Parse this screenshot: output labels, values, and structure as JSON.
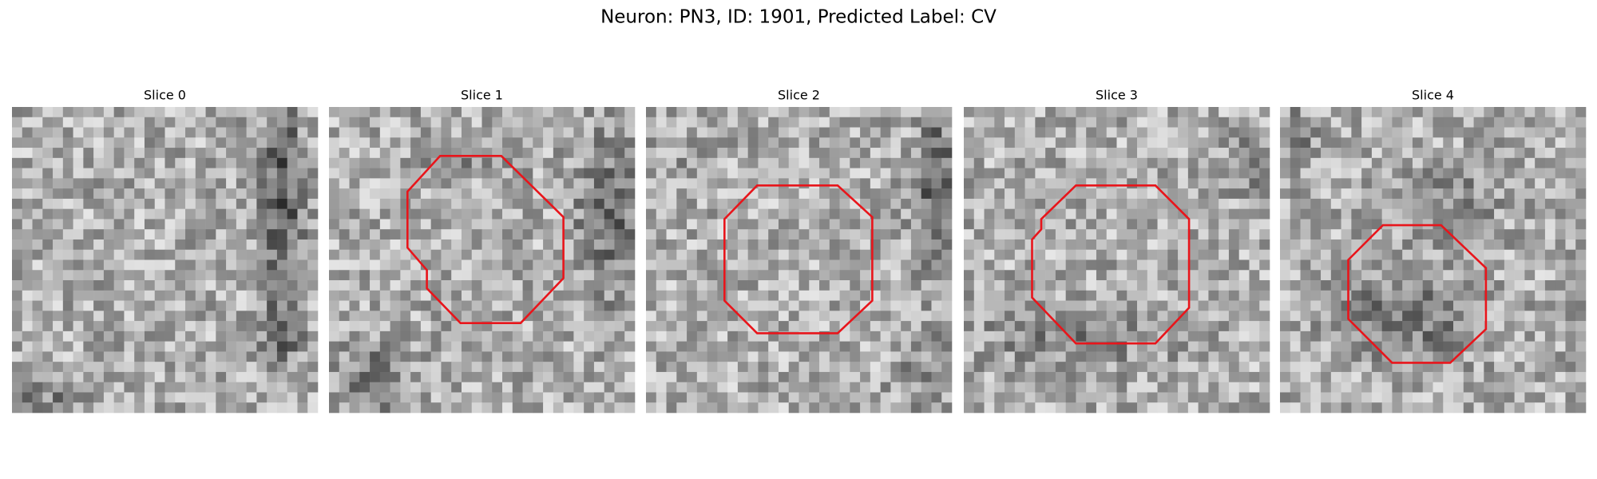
{
  "figure": {
    "title": "Neuron: PN3, ID: 1901, Predicted Label: CV",
    "panels": [
      {
        "title": "Slice 0"
      },
      {
        "title": "Slice 1"
      },
      {
        "title": "Slice 2"
      },
      {
        "title": "Slice 3"
      },
      {
        "title": "Slice 4"
      }
    ]
  }
}
